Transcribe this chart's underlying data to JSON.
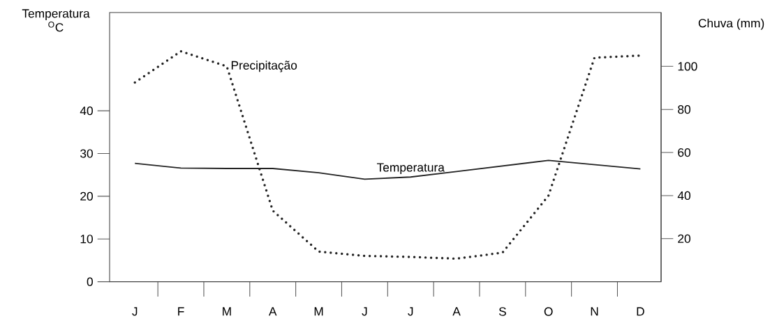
{
  "chart_data": {
    "type": "line",
    "ylabel": "Temperatura $^{O}$C",
    "y2label": "Chuva (mm)",
    "categories": [
      "J",
      "F",
      "M",
      "A",
      "M",
      "J",
      "J",
      "A",
      "S",
      "O",
      "N",
      "D"
    ],
    "series": [
      {
        "name": "Temperatura",
        "color": "#222222",
        "line_style": "solid",
        "values": [
          27.7,
          26.6,
          26.5,
          26.5,
          25.5,
          24.0,
          24.5,
          25.8,
          27.1,
          28.4,
          27.4,
          26.4
        ]
      },
      {
        "name": "Precipitação",
        "color": "#222222",
        "line_style": "dotted",
        "axis": "y2",
        "values": [
          92.5,
          107,
          100,
          33,
          14,
          12,
          11.5,
          10.7,
          13.5,
          40,
          104,
          105
        ]
      }
    ],
    "marker": "none",
    "ylim": [
      0,
      63
    ],
    "yticks": [
      0,
      10,
      20,
      30,
      40
    ],
    "y2lim": [
      0,
      125
    ],
    "y2ticks": [
      20,
      40,
      60,
      80,
      100
    ]
  }
}
